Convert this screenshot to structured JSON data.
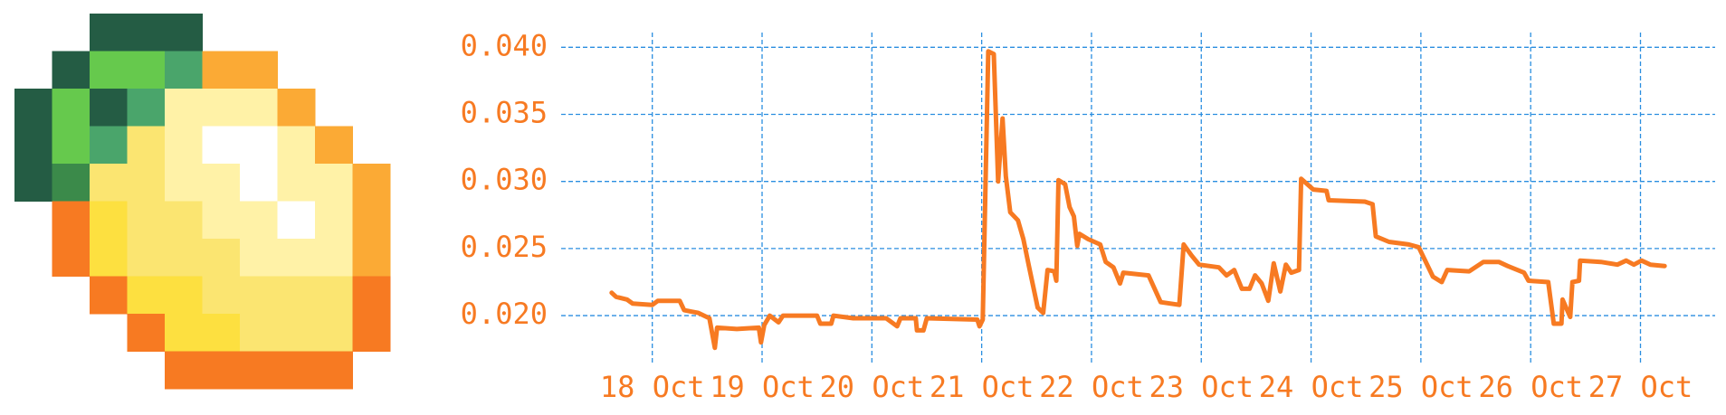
{
  "chart_data": {
    "type": "line",
    "x": [
      17.63,
      17.67,
      17.77,
      17.82,
      18.0,
      18.05,
      18.25,
      18.29,
      18.42,
      18.52,
      18.57,
      18.59,
      18.77,
      18.97,
      18.99,
      19.02,
      19.07,
      19.15,
      19.19,
      19.5,
      19.53,
      19.63,
      19.65,
      19.83,
      20.13,
      20.23,
      20.26,
      20.4,
      20.41,
      20.47,
      20.5,
      20.96,
      20.98,
      21.01,
      21.06,
      21.11,
      21.15,
      21.19,
      21.22,
      21.26,
      21.33,
      21.38,
      21.43,
      21.51,
      21.56,
      21.6,
      21.66,
      21.68,
      21.7,
      21.76,
      21.8,
      21.84,
      21.87,
      21.89,
      21.97,
      22.08,
      22.13,
      22.2,
      22.26,
      22.29,
      22.52,
      22.63,
      22.8,
      22.84,
      22.91,
      22.98,
      23.16,
      23.23,
      23.3,
      23.37,
      23.44,
      23.49,
      23.55,
      23.61,
      23.66,
      23.72,
      23.77,
      23.82,
      23.89,
      23.91,
      24.02,
      24.14,
      24.16,
      24.49,
      24.56,
      24.59,
      24.71,
      24.89,
      24.98,
      25.11,
      25.19,
      25.24,
      25.44,
      25.57,
      25.71,
      25.79,
      25.94,
      25.98,
      26.16,
      26.21,
      26.28,
      26.29,
      26.36,
      26.38,
      26.44,
      26.45,
      26.64,
      26.79,
      26.87,
      26.94,
      27.01,
      27.09,
      27.22
    ],
    "series": [
      {
        "color": "#f77a22",
        "values": [
          0.0217,
          0.0214,
          0.0212,
          0.0209,
          0.0208,
          0.0211,
          0.0211,
          0.0204,
          0.0202,
          0.0198,
          0.0176,
          0.0191,
          0.019,
          0.0191,
          0.018,
          0.0193,
          0.02,
          0.0195,
          0.02,
          0.02,
          0.0194,
          0.0194,
          0.02,
          0.0198,
          0.0198,
          0.0192,
          0.0198,
          0.0198,
          0.0189,
          0.0189,
          0.0198,
          0.0197,
          0.0192,
          0.0197,
          0.0397,
          0.0395,
          0.03,
          0.0347,
          0.0304,
          0.0277,
          0.0271,
          0.0257,
          0.0237,
          0.0206,
          0.0202,
          0.0234,
          0.0233,
          0.0226,
          0.0301,
          0.0298,
          0.0281,
          0.0274,
          0.0252,
          0.0261,
          0.0257,
          0.0253,
          0.024,
          0.0236,
          0.0224,
          0.0232,
          0.023,
          0.021,
          0.0208,
          0.0253,
          0.0245,
          0.0238,
          0.0236,
          0.023,
          0.0234,
          0.022,
          0.022,
          0.023,
          0.0224,
          0.0211,
          0.0239,
          0.0218,
          0.0238,
          0.0232,
          0.0234,
          0.0302,
          0.0294,
          0.0293,
          0.0286,
          0.0285,
          0.0283,
          0.0259,
          0.0255,
          0.0253,
          0.0251,
          0.0229,
          0.0225,
          0.0234,
          0.0233,
          0.024,
          0.024,
          0.0237,
          0.0232,
          0.0226,
          0.0225,
          0.0194,
          0.0194,
          0.0212,
          0.0199,
          0.0225,
          0.0226,
          0.0241,
          0.024,
          0.0238,
          0.0241,
          0.0238,
          0.0241,
          0.0238,
          0.0237
        ]
      }
    ],
    "xlim": [
      17.17,
      27.68
    ],
    "xticks": [
      {
        "value": 18,
        "label": "18 Oct"
      },
      {
        "value": 19,
        "label": "19 Oct"
      },
      {
        "value": 20,
        "label": "20 Oct"
      },
      {
        "value": 21,
        "label": "21 Oct"
      },
      {
        "value": 22,
        "label": "22 Oct"
      },
      {
        "value": 23,
        "label": "23 Oct"
      },
      {
        "value": 24,
        "label": "24 Oct"
      },
      {
        "value": 25,
        "label": "25 Oct"
      },
      {
        "value": 26,
        "label": "26 Oct"
      },
      {
        "value": 27,
        "label": "27 Oct"
      }
    ],
    "ylim": [
      0.0165,
      0.0411
    ],
    "yticks": [
      {
        "value": 0.02,
        "label": "0.020"
      },
      0.025,
      {
        "value": 0.03,
        "label": "0.030"
      },
      0.035,
      {
        "value": 0.04,
        "label": "0.040"
      }
    ],
    "grid": true,
    "grid_color": "#2a8ee0",
    "tick_color": "#f77a22"
  }
}
